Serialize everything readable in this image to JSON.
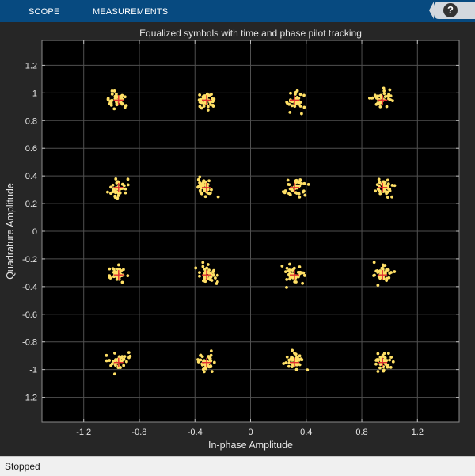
{
  "toolstrip": {
    "tabs": [
      {
        "label": "SCOPE"
      },
      {
        "label": "MEASUREMENTS"
      }
    ],
    "help_label": "?",
    "background": "#074a80"
  },
  "chart_data": {
    "type": "scatter",
    "title": "Equalized symbols with time and phase pilot tracking",
    "xlabel": "In-phase Amplitude",
    "ylabel": "Quadrature Amplitude",
    "xlim": [
      -1.5,
      1.5
    ],
    "ylim": [
      -1.38,
      1.38
    ],
    "xticks": [
      -1.2,
      -0.8,
      -0.4,
      0,
      0.4,
      0.8,
      1.2
    ],
    "xtick_labels": [
      "-1.2",
      "-0.8",
      "-0.4",
      "0",
      "0.4",
      "0.8",
      "1.2"
    ],
    "yticks": [
      1.2,
      1,
      0.8,
      0.6,
      0.4,
      0.2,
      0,
      -0.2,
      -0.4,
      -0.6,
      -0.8,
      -1,
      -1.2
    ],
    "ytick_labels": [
      "1.2",
      "1",
      "0.8",
      "0.6",
      "0.4",
      "0.2",
      "0",
      "-0.2",
      "-0.4",
      "-0.6",
      "-0.8",
      "-1",
      "-1.2"
    ],
    "grid": true,
    "background": "#000000",
    "grid_color": "#505050",
    "series": [
      {
        "marker": "dot",
        "color": "#ffe066",
        "cluster_centers": [
          [
            -0.955,
            0.945
          ],
          [
            -0.32,
            0.945
          ],
          [
            0.32,
            0.945
          ],
          [
            0.955,
            0.955
          ],
          [
            -0.955,
            0.315
          ],
          [
            -0.32,
            0.315
          ],
          [
            0.32,
            0.315
          ],
          [
            0.955,
            0.315
          ],
          [
            -0.955,
            -0.315
          ],
          [
            -0.32,
            -0.315
          ],
          [
            0.32,
            -0.315
          ],
          [
            0.955,
            -0.315
          ],
          [
            -0.955,
            -0.945
          ],
          [
            -0.32,
            -0.945
          ],
          [
            0.32,
            -0.945
          ],
          [
            0.955,
            -0.945
          ]
        ],
        "points_per_cluster": 40,
        "spread": 0.032
      },
      {
        "marker": "plus",
        "color": "#e03030",
        "points": [
          [
            -0.949,
            0.949
          ],
          [
            -0.316,
            0.949
          ],
          [
            0.316,
            0.949
          ],
          [
            0.949,
            0.949
          ],
          [
            -0.949,
            0.316
          ],
          [
            -0.316,
            0.316
          ],
          [
            0.316,
            0.316
          ],
          [
            0.949,
            0.316
          ],
          [
            -0.949,
            -0.316
          ],
          [
            -0.316,
            -0.316
          ],
          [
            0.316,
            -0.316
          ],
          [
            0.949,
            -0.316
          ],
          [
            -0.949,
            -0.949
          ],
          [
            -0.316,
            -0.949
          ],
          [
            0.316,
            -0.949
          ],
          [
            0.949,
            -0.949
          ]
        ]
      }
    ]
  },
  "status": {
    "text": "Stopped"
  }
}
